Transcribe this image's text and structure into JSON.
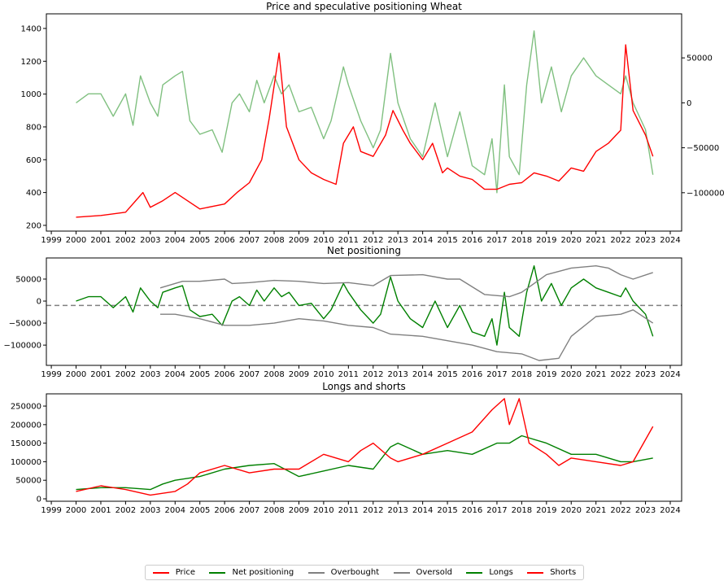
{
  "chart_data": [
    {
      "type": "line",
      "title": "Price and speculative positioning Wheat",
      "xlim": [
        1998.8,
        2024.46
      ],
      "xticks": [
        1999,
        2000,
        2001,
        2002,
        2003,
        2004,
        2005,
        2006,
        2007,
        2008,
        2009,
        2010,
        2011,
        2012,
        2013,
        2014,
        2015,
        2016,
        2017,
        2018,
        2019,
        2020,
        2021,
        2022,
        2023,
        2024
      ],
      "ylim_left": [
        165,
        1489
      ],
      "yticks_left": [
        200,
        400,
        600,
        800,
        1000,
        1200,
        1400
      ],
      "ylim_right": [
        -142700,
        99000
      ],
      "yticks_right": [
        50000,
        0,
        -50000,
        -100000
      ],
      "series": [
        {
          "name": "Price",
          "axis": "left",
          "color": "#ff0000",
          "x": [
            2000,
            2001,
            2002,
            2002.7,
            2003,
            2003.5,
            2004,
            2004.5,
            2005,
            2006,
            2006.5,
            2007,
            2007.5,
            2007.8,
            2008.2,
            2008.5,
            2009,
            2009.5,
            2010,
            2010.5,
            2010.8,
            2011.2,
            2011.5,
            2012,
            2012.5,
            2012.8,
            2013.2,
            2013.5,
            2014,
            2014.4,
            2014.8,
            2015,
            2015.5,
            2016,
            2016.5,
            2017,
            2017.5,
            2018,
            2018.5,
            2019,
            2019.5,
            2020,
            2020.5,
            2021,
            2021.5,
            2022,
            2022.2,
            2022.5,
            2023,
            2023.3
          ],
          "y": [
            250,
            260,
            280,
            400,
            310,
            350,
            400,
            350,
            300,
            330,
            400,
            460,
            600,
            850,
            1250,
            800,
            600,
            520,
            480,
            450,
            700,
            800,
            650,
            620,
            750,
            900,
            780,
            700,
            600,
            700,
            520,
            550,
            500,
            480,
            420,
            420,
            450,
            460,
            520,
            500,
            470,
            550,
            530,
            650,
            700,
            780,
            1300,
            900,
            750,
            620
          ]
        },
        {
          "name": "Net positioning",
          "axis": "right",
          "color": "#80c080",
          "ref": "net"
        }
      ]
    },
    {
      "type": "line",
      "title": "Net positioning",
      "xlim": [
        1998.8,
        2024.46
      ],
      "ylim": [
        -146000,
        98000
      ],
      "yticks": [
        50000,
        0,
        -50000,
        -100000
      ],
      "hline": -10000,
      "series": [
        {
          "name": "Net positioning",
          "color": "#008000",
          "x": [
            2000,
            2000.5,
            2001,
            2001.5,
            2002,
            2002.3,
            2002.6,
            2003,
            2003.3,
            2003.5,
            2004,
            2004.3,
            2004.6,
            2005,
            2005.5,
            2005.9,
            2006.3,
            2006.6,
            2007,
            2007.3,
            2007.6,
            2008,
            2008.3,
            2008.6,
            2009,
            2009.5,
            2010,
            2010.3,
            2010.8,
            2011,
            2011.5,
            2012,
            2012.3,
            2012.7,
            2013,
            2013.5,
            2014,
            2014.5,
            2015,
            2015.5,
            2016,
            2016.5,
            2016.8,
            2017,
            2017.3,
            2017.5,
            2017.9,
            2018.2,
            2018.5,
            2018.8,
            2019.2,
            2019.6,
            2020,
            2020.5,
            2021,
            2021.5,
            2022,
            2022.2,
            2022.5,
            2023,
            2023.3
          ],
          "y": [
            0,
            10000,
            10000,
            -15000,
            10000,
            -25000,
            30000,
            0,
            -15000,
            20000,
            30000,
            35000,
            -20000,
            -35000,
            -30000,
            -55000,
            0,
            10000,
            -10000,
            25000,
            0,
            30000,
            10000,
            20000,
            -10000,
            -5000,
            -40000,
            -20000,
            40000,
            20000,
            -20000,
            -50000,
            -30000,
            55000,
            0,
            -40000,
            -60000,
            0,
            -60000,
            -10000,
            -70000,
            -80000,
            -40000,
            -100000,
            20000,
            -60000,
            -80000,
            20000,
            80000,
            0,
            40000,
            -10000,
            30000,
            50000,
            30000,
            20000,
            10000,
            30000,
            0,
            -30000,
            -80000
          ]
        },
        {
          "name": "Overbought",
          "color": "#808080",
          "x": [
            2003.4,
            2004.3,
            2005,
            2006,
            2006.3,
            2007,
            2008,
            2009,
            2010,
            2011,
            2012,
            2012.7,
            2014,
            2015,
            2015.5,
            2016.5,
            2017.5,
            2018,
            2018.5,
            2019,
            2020,
            2021,
            2021.5,
            2022,
            2022.5,
            2023.3
          ],
          "y": [
            30000,
            45000,
            45000,
            50000,
            40000,
            42000,
            47000,
            45000,
            40000,
            42000,
            35000,
            58000,
            60000,
            50000,
            50000,
            15000,
            10000,
            20000,
            40000,
            60000,
            75000,
            80000,
            75000,
            60000,
            50000,
            65000
          ]
        },
        {
          "name": "Oversold",
          "color": "#808080",
          "x": [
            2003.4,
            2004,
            2005,
            2006,
            2007,
            2008,
            2009,
            2010,
            2011,
            2012,
            2012.7,
            2014,
            2015,
            2016,
            2017,
            2018,
            2018.7,
            2019.5,
            2020,
            2021,
            2022,
            2022.5,
            2023.3
          ],
          "y": [
            -30000,
            -30000,
            -40000,
            -55000,
            -55000,
            -50000,
            -40000,
            -45000,
            -55000,
            -60000,
            -75000,
            -80000,
            -90000,
            -100000,
            -115000,
            -120000,
            -135000,
            -130000,
            -80000,
            -35000,
            -30000,
            -20000,
            -50000
          ]
        }
      ]
    },
    {
      "type": "line",
      "title": "Longs and shorts",
      "xlim": [
        1998.8,
        2024.46
      ],
      "ylim": [
        -6600,
        283000
      ],
      "yticks": [
        0,
        50000,
        100000,
        150000,
        200000,
        250000
      ],
      "series": [
        {
          "name": "Longs",
          "color": "#008000",
          "x": [
            2000,
            2001,
            2002,
            2003,
            2003.5,
            2004,
            2005,
            2006,
            2007,
            2008,
            2009,
            2010,
            2011,
            2012,
            2012.7,
            2013,
            2014,
            2015,
            2016,
            2017,
            2017.5,
            2018,
            2019,
            2020,
            2021,
            2022,
            2022.5,
            2023.3
          ],
          "y": [
            25000,
            30000,
            30000,
            25000,
            40000,
            50000,
            60000,
            80000,
            90000,
            95000,
            60000,
            75000,
            90000,
            80000,
            140000,
            150000,
            120000,
            130000,
            120000,
            150000,
            150000,
            170000,
            150000,
            120000,
            120000,
            100000,
            100000,
            110000
          ]
        },
        {
          "name": "Shorts",
          "color": "#ff0000",
          "x": [
            2000,
            2001,
            2002,
            2003,
            2004,
            2004.5,
            2005,
            2006,
            2007,
            2008,
            2009,
            2010,
            2011,
            2011.5,
            2012,
            2012.7,
            2013,
            2014,
            2015,
            2016,
            2016.8,
            2017.3,
            2017.5,
            2017.9,
            2018.3,
            2019,
            2019.5,
            2020,
            2021,
            2022,
            2022.5,
            2023.3
          ],
          "y": [
            20000,
            35000,
            25000,
            10000,
            20000,
            40000,
            70000,
            90000,
            70000,
            80000,
            80000,
            120000,
            100000,
            130000,
            150000,
            110000,
            100000,
            120000,
            150000,
            180000,
            240000,
            270000,
            200000,
            270000,
            150000,
            120000,
            90000,
            110000,
            100000,
            90000,
            100000,
            195000
          ]
        }
      ]
    }
  ],
  "legend": [
    {
      "label": "Price",
      "color": "#ff0000"
    },
    {
      "label": "Net positioning",
      "color": "#008000"
    },
    {
      "label": "Overbought",
      "color": "#808080"
    },
    {
      "label": "Oversold",
      "color": "#808080"
    },
    {
      "label": "Longs",
      "color": "#008000"
    },
    {
      "label": "Shorts",
      "color": "#ff0000"
    }
  ]
}
